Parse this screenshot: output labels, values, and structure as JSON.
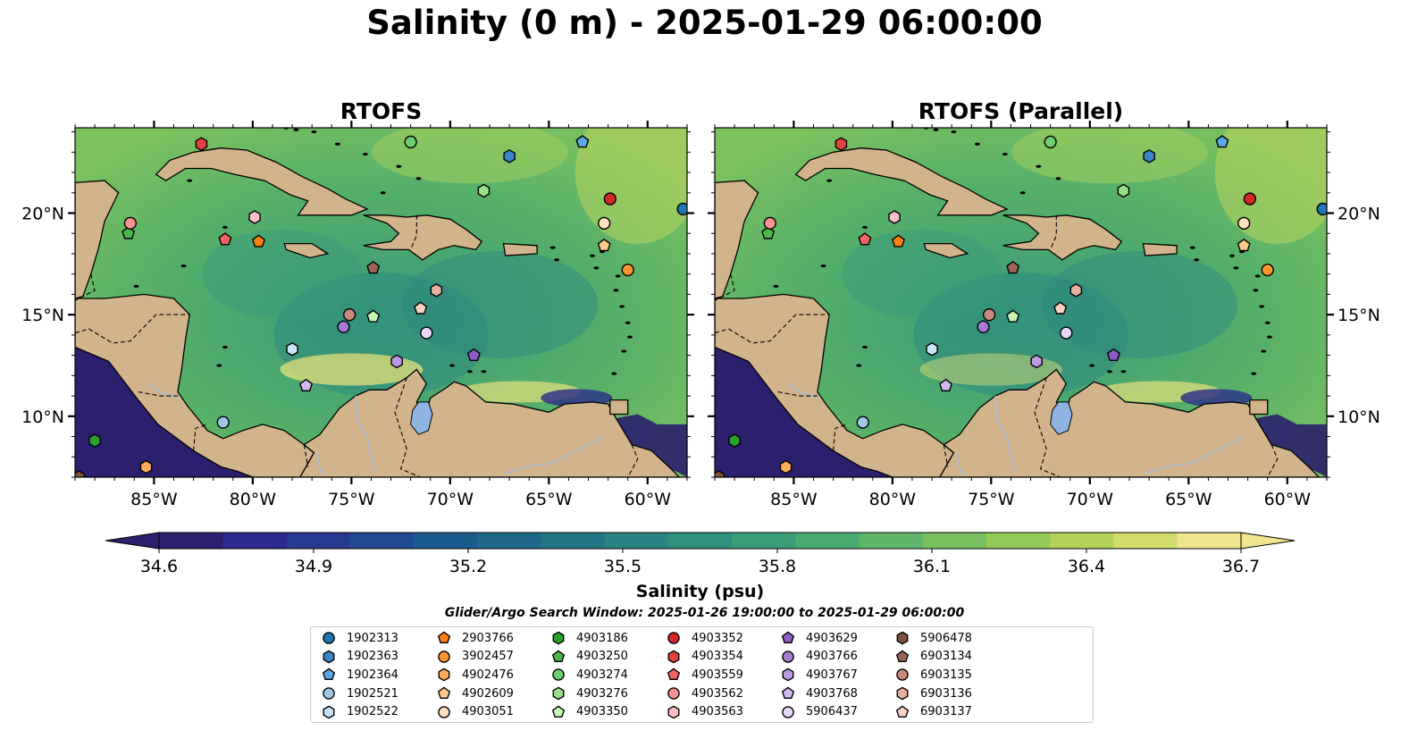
{
  "title": "Salinity (0 m) - 2025-01-29 06:00:00",
  "panels": [
    {
      "title": "RTOFS"
    },
    {
      "title": "RTOFS (Parallel)"
    }
  ],
  "map_extent": {
    "lon": [
      -89,
      -58
    ],
    "lat": [
      7,
      24.2
    ]
  },
  "lon_ticks": [
    {
      "value": -85,
      "label": "85°W"
    },
    {
      "value": -80,
      "label": "80°W"
    },
    {
      "value": -75,
      "label": "75°W"
    },
    {
      "value": -70,
      "label": "70°W"
    },
    {
      "value": -65,
      "label": "65°W"
    },
    {
      "value": -60,
      "label": "60°W"
    }
  ],
  "lat_ticks": [
    {
      "value": 10,
      "label": "10°N"
    },
    {
      "value": 15,
      "label": "15°N"
    },
    {
      "value": 20,
      "label": "20°N"
    }
  ],
  "colorbar": {
    "label": "Salinity (psu)",
    "min": 34.6,
    "max": 36.7,
    "ticks": [
      "34.6",
      "34.9",
      "35.2",
      "35.5",
      "35.8",
      "36.1",
      "36.4",
      "36.7"
    ],
    "colors": [
      "#2b1f6e",
      "#2c2a8c",
      "#27398f",
      "#1f4a8f",
      "#1a5a8c",
      "#1d6888",
      "#237585",
      "#2a8282",
      "#30907e",
      "#3a9d77",
      "#4aaa70",
      "#5fb568",
      "#78c05f",
      "#94ca59",
      "#b2d25b",
      "#d2dc6c",
      "#f0e58e"
    ],
    "extend": "both"
  },
  "colors": {
    "land": "#d2b48c",
    "low_salinity": "#2b1f6e",
    "high_salinity": "#fbe994",
    "mid_salinity": "#4aa874",
    "lake": "#8fb4e2"
  },
  "search_window": "Glider/Argo Search Window: 2025-01-26 19:00:00 to 2025-01-29 06:00:00",
  "legend": [
    {
      "id": "1902313",
      "shape": "circle",
      "color": "#1f77b4"
    },
    {
      "id": "1902363",
      "shape": "hexagon",
      "color": "#3c84c8"
    },
    {
      "id": "1902364",
      "shape": "pentagon",
      "color": "#5aa8e6"
    },
    {
      "id": "1902521",
      "shape": "circle",
      "color": "#9ecae9"
    },
    {
      "id": "1902522",
      "shape": "hexagon",
      "color": "#c6e3f7"
    },
    {
      "id": "2903766",
      "shape": "pentagon",
      "color": "#ff7f0e"
    },
    {
      "id": "3902457",
      "shape": "circle",
      "color": "#ff9530"
    },
    {
      "id": "4902476",
      "shape": "hexagon",
      "color": "#ffad5a"
    },
    {
      "id": "4902609",
      "shape": "pentagon",
      "color": "#ffc88c"
    },
    {
      "id": "4903051",
      "shape": "circle",
      "color": "#ffe0bf"
    },
    {
      "id": "4903186",
      "shape": "hexagon",
      "color": "#2ca02c"
    },
    {
      "id": "4903250",
      "shape": "pentagon",
      "color": "#4cb84c"
    },
    {
      "id": "4903274",
      "shape": "circle",
      "color": "#6fcf6f"
    },
    {
      "id": "4903276",
      "shape": "hexagon",
      "color": "#98df8a"
    },
    {
      "id": "4903350",
      "shape": "pentagon",
      "color": "#c8f5b8"
    },
    {
      "id": "4903352",
      "shape": "circle",
      "color": "#d62728"
    },
    {
      "id": "4903354",
      "shape": "hexagon",
      "color": "#e0423f"
    },
    {
      "id": "4903559",
      "shape": "pentagon",
      "color": "#f0626a"
    },
    {
      "id": "4903562",
      "shape": "circle",
      "color": "#f59292"
    },
    {
      "id": "4903563",
      "shape": "hexagon",
      "color": "#ffc0c8"
    },
    {
      "id": "4903629",
      "shape": "pentagon",
      "color": "#8e5cc4"
    },
    {
      "id": "4903766",
      "shape": "circle",
      "color": "#a57dd0"
    },
    {
      "id": "4903767",
      "shape": "hexagon",
      "color": "#bd9be3"
    },
    {
      "id": "4903768",
      "shape": "pentagon",
      "color": "#d3b8f0"
    },
    {
      "id": "5906437",
      "shape": "circle",
      "color": "#e8d8fb"
    },
    {
      "id": "5906478",
      "shape": "hexagon",
      "color": "#7f4f3f"
    },
    {
      "id": "6903134",
      "shape": "pentagon",
      "color": "#9c6656"
    },
    {
      "id": "6903135",
      "shape": "circle",
      "color": "#c98a7a"
    },
    {
      "id": "6903136",
      "shape": "hexagon",
      "color": "#e3b09e"
    },
    {
      "id": "6903137",
      "shape": "pentagon",
      "color": "#f7d3c4"
    }
  ],
  "floats": [
    {
      "id": "1902313",
      "lon": -58.2,
      "lat": 20.2
    },
    {
      "id": "1902363",
      "lon": -67.0,
      "lat": 22.8
    },
    {
      "id": "1902364",
      "lon": -63.3,
      "lat": 23.5
    },
    {
      "id": "1902521",
      "lon": -81.5,
      "lat": 9.7
    },
    {
      "id": "1902522",
      "lon": -78.0,
      "lat": 13.3
    },
    {
      "id": "2903766",
      "lon": -79.7,
      "lat": 18.6
    },
    {
      "id": "3902457",
      "lon": -61.0,
      "lat": 17.2
    },
    {
      "id": "4902476",
      "lon": -85.4,
      "lat": 7.5
    },
    {
      "id": "4902609",
      "lon": -62.2,
      "lat": 18.4
    },
    {
      "id": "4903051",
      "lon": -62.2,
      "lat": 19.5
    },
    {
      "id": "4903186",
      "lon": -88.0,
      "lat": 8.8
    },
    {
      "id": "4903250",
      "lon": -86.3,
      "lat": 19.0
    },
    {
      "id": "4903274",
      "lon": -72.0,
      "lat": 23.5
    },
    {
      "id": "4903276",
      "lon": -68.3,
      "lat": 21.1
    },
    {
      "id": "4903350",
      "lon": -73.9,
      "lat": 14.9
    },
    {
      "id": "4903352",
      "lon": -61.9,
      "lat": 20.7
    },
    {
      "id": "4903354",
      "lon": -82.6,
      "lat": 23.4
    },
    {
      "id": "4903559",
      "lon": -81.4,
      "lat": 18.7
    },
    {
      "id": "4903562",
      "lon": -86.2,
      "lat": 19.5
    },
    {
      "id": "4903563",
      "lon": -79.9,
      "lat": 19.8
    },
    {
      "id": "4903629",
      "lon": -68.8,
      "lat": 13.0
    },
    {
      "id": "4903766",
      "lon": -75.4,
      "lat": 14.4
    },
    {
      "id": "4903767",
      "lon": -72.7,
      "lat": 12.7
    },
    {
      "id": "4903768",
      "lon": -77.3,
      "lat": 11.5
    },
    {
      "id": "5906437",
      "lon": -71.2,
      "lat": 14.1
    },
    {
      "id": "5906478",
      "lon": -88.8,
      "lat": 7.0
    },
    {
      "id": "6903134",
      "lon": -73.9,
      "lat": 17.3
    },
    {
      "id": "6903135",
      "lon": -75.1,
      "lat": 15.0
    },
    {
      "id": "6903136",
      "lon": -70.7,
      "lat": 16.2
    },
    {
      "id": "6903137",
      "lon": -71.5,
      "lat": 15.3
    }
  ]
}
